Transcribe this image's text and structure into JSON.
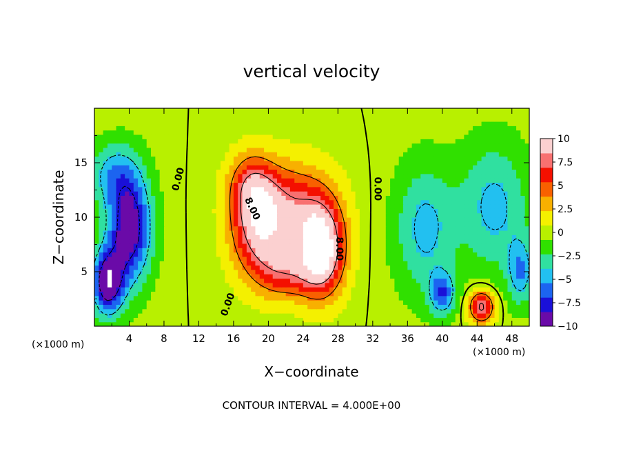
{
  "chart_data": {
    "type": "heatmap",
    "title": "vertical velocity",
    "xlabel": "X−coordinate",
    "ylabel": "Z−coordinate",
    "x_unit": "(×1000 m)",
    "xlim": [
      0,
      50
    ],
    "ylim": [
      0,
      20
    ],
    "x_ticks": [
      4,
      8,
      12,
      16,
      20,
      24,
      28,
      32,
      36,
      40,
      44,
      48
    ],
    "x_tick_labels": [
      "4",
      "8",
      "12",
      "16",
      "20",
      "24",
      "28",
      "32",
      "36",
      "40",
      "44",
      "48"
    ],
    "y_ticks": [
      5,
      10,
      15
    ],
    "y_tick_labels": [
      "5",
      "10",
      "15"
    ],
    "colorbar": {
      "range": [
        -10,
        10
      ],
      "ticks": [
        10,
        7.5,
        5,
        2.5,
        0,
        -2.5,
        -5,
        -7.5,
        -10
      ],
      "tick_labels": [
        "10",
        "7.5",
        "5",
        "2.5",
        "0",
        "−2.5",
        "−5",
        "−7.5",
        "−10"
      ],
      "colors": [
        "#6a0aa8",
        "#1a10d8",
        "#1c64f0",
        "#22c0f0",
        "#30e0a0",
        "#30e000",
        "#b8f000",
        "#f4f000",
        "#f8b000",
        "#f86000",
        "#f41000",
        "#f87070",
        "#fbd0d0"
      ]
    },
    "contour_labels": [
      {
        "text": "0.00",
        "x": 9.6,
        "z": 13.5,
        "angle": -75
      },
      {
        "text": "0.00",
        "x": 32.6,
        "z": 12.6,
        "angle": 90
      },
      {
        "text": "0.00",
        "x": 15.3,
        "z": 2.0,
        "angle": -70
      },
      {
        "text": "8.00",
        "x": 18.2,
        "z": 10.8,
        "angle": 65
      },
      {
        "text": "8.00",
        "x": 28.2,
        "z": 7.1,
        "angle": 90
      }
    ],
    "cells": [
      {
        "x": 26,
        "z": 7,
        "sx": 2.6,
        "sz": 4.0,
        "a": 13
      },
      {
        "x": 19,
        "z": 9,
        "sx": 3.2,
        "sz": 4.5,
        "a": 9
      },
      {
        "x": 23,
        "z": 11,
        "sx": 4.5,
        "sz": 4.0,
        "a": 6
      },
      {
        "x": 18,
        "z": 13,
        "sx": 2.5,
        "sz": 3.0,
        "a": 5
      },
      {
        "x": 22,
        "z": 5,
        "sx": 3.0,
        "sz": 2.5,
        "a": 5
      },
      {
        "x": 44.5,
        "z": 1.8,
        "sx": 1.5,
        "sz": 1.5,
        "a": 9
      },
      {
        "x": 4,
        "z": 9,
        "sx": 2.5,
        "sz": 5.0,
        "a": -10
      },
      {
        "x": 1.5,
        "z": 4,
        "sx": 1.8,
        "sz": 3.0,
        "a": -10
      },
      {
        "x": 2,
        "z": 14,
        "sx": 3.0,
        "sz": 3.0,
        "a": -4
      },
      {
        "x": 38,
        "z": 9,
        "sx": 3.5,
        "sz": 6.0,
        "a": -4.5
      },
      {
        "x": 46,
        "z": 11,
        "sx": 4.0,
        "sz": 6.0,
        "a": -4.5
      },
      {
        "x": 40,
        "z": 3,
        "sx": 1.5,
        "sz": 2.0,
        "a": -6
      },
      {
        "x": 49,
        "z": 5,
        "sx": 1.5,
        "sz": 3.0,
        "a": -5
      }
    ],
    "grid": false,
    "legend": "colorbar-right"
  },
  "footer": {
    "contour_interval": "CONTOUR INTERVAL = 4.000E+00"
  }
}
